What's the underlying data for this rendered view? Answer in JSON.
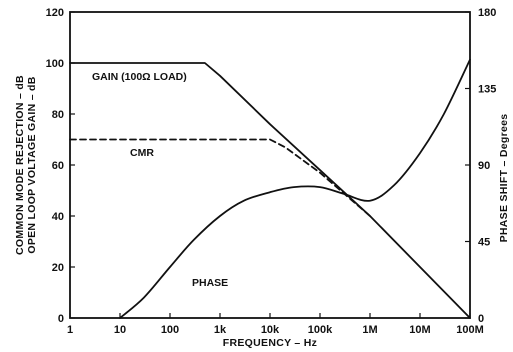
{
  "chart_data": {
    "type": "line",
    "xscale": "log",
    "xlim": [
      1,
      100000000
    ],
    "xlabel": "FREQUENCY – Hz",
    "x_ticks": [
      "1",
      "10",
      "100",
      "1k",
      "10k",
      "100k",
      "1M",
      "10M",
      "100M"
    ],
    "ylabel_left": [
      "COMMON MODE REJECTION – dB",
      "OPEN LOOP VOLTAGE GAIN – dB"
    ],
    "ylim_left": [
      0,
      120
    ],
    "y_ticks_left": [
      "0",
      "20",
      "40",
      "60",
      "80",
      "100",
      "120"
    ],
    "ylabel_right": "PHASE SHIFT – Degrees",
    "ylim_right": [
      0,
      180
    ],
    "y_ticks_right": [
      "0",
      "45",
      "90",
      "135",
      "180"
    ],
    "grid": false,
    "series": [
      {
        "name": "GAIN (100Ω LOAD)",
        "axis": "left",
        "style": "solid",
        "x": [
          1,
          10,
          100,
          500,
          1000,
          10000,
          100000,
          1000000,
          10000000,
          100000000
        ],
        "y": [
          100,
          100,
          100,
          100,
          95,
          76,
          58,
          40,
          20,
          0
        ]
      },
      {
        "name": "CMR",
        "axis": "left",
        "style": "dashed",
        "x": [
          1,
          10,
          100,
          1000,
          10000,
          20000,
          100000,
          1000000
        ],
        "y": [
          70,
          70,
          70,
          70,
          70,
          67,
          57,
          40
        ]
      },
      {
        "name": "PHASE",
        "axis": "right",
        "style": "solid",
        "x": [
          10,
          30,
          100,
          300,
          1000,
          3000,
          10000,
          30000,
          100000,
          300000,
          1000000,
          3000000,
          10000000,
          30000000,
          100000000
        ],
        "y": [
          0,
          12,
          30,
          46,
          60,
          69,
          74,
          77,
          77,
          73,
          69,
          78,
          97,
          120,
          152
        ]
      }
    ],
    "annotations": [
      "GAIN (100Ω LOAD)",
      "CMR",
      "PHASE"
    ]
  }
}
